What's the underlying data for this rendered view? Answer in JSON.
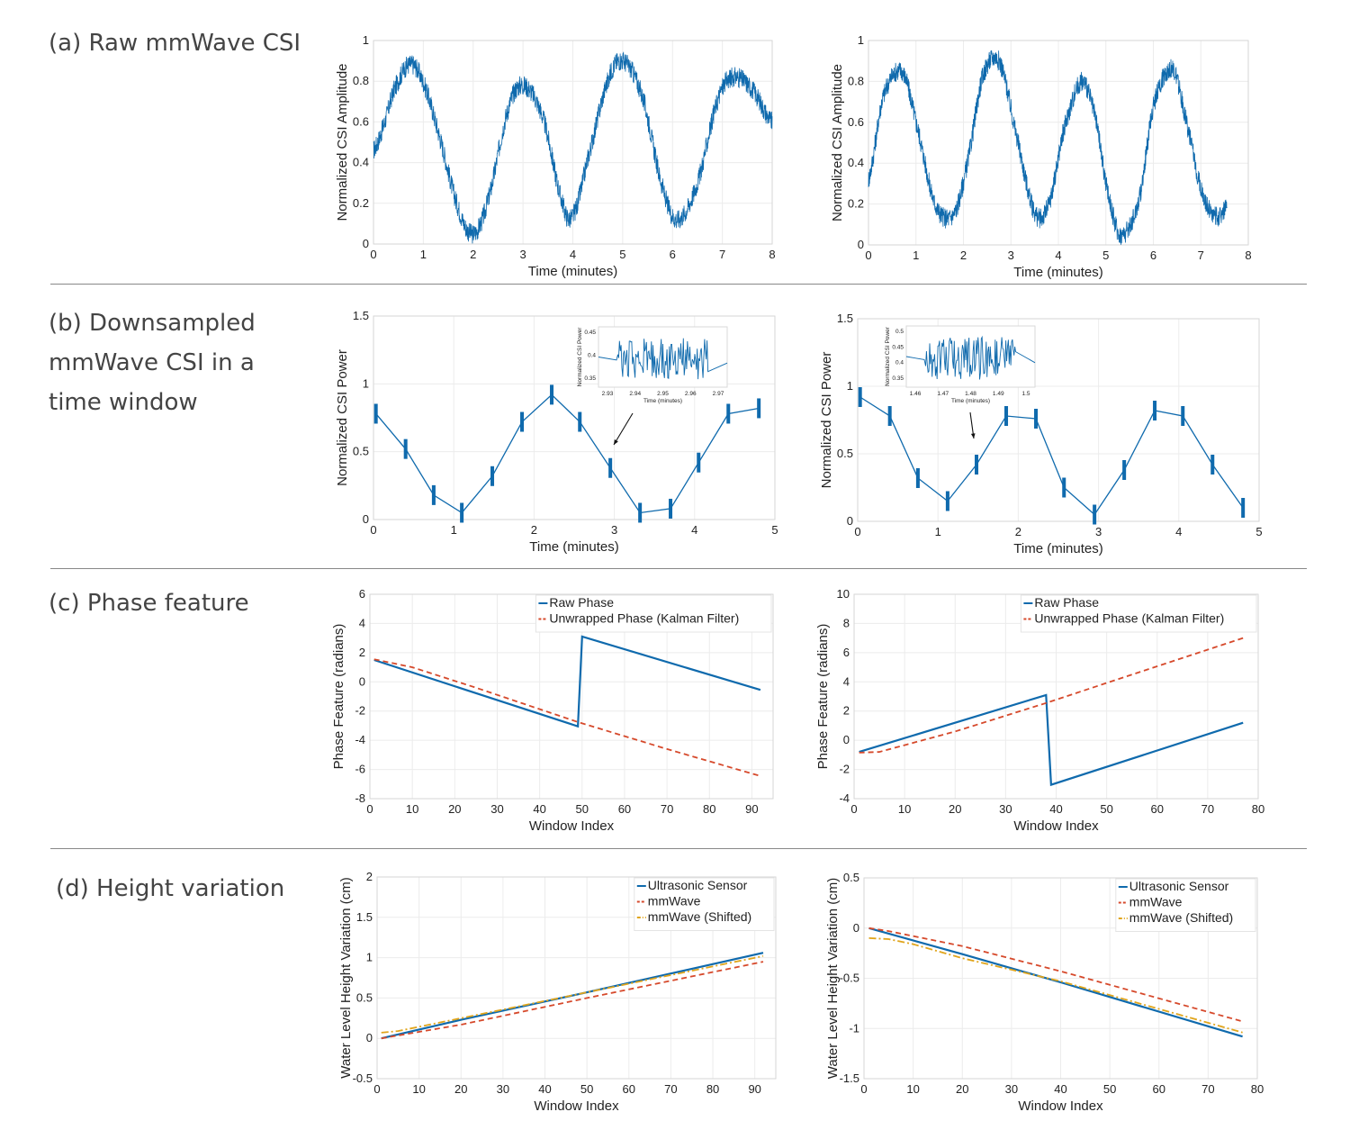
{
  "rows": [
    {
      "key": "a",
      "label": "(a) Raw mmWave CSI"
    },
    {
      "key": "b",
      "label": "(b) Downsampled\nmmWave CSI in a\ntime window"
    },
    {
      "key": "c",
      "label": "(c) Phase feature"
    },
    {
      "key": "d",
      "label": "(d) Height variation"
    }
  ],
  "colors": {
    "blue": "#0f6aad",
    "red": "#d6492b",
    "orange": "#e0a51c"
  },
  "chart_data": [
    {
      "id": "a-left",
      "type": "line",
      "xlabel": "Time (minutes)",
      "ylabel": "Normalized CSI Amplitude",
      "xlim": [
        0,
        8
      ],
      "ylim": [
        0,
        1
      ],
      "xticks": [
        "0",
        "1",
        "2",
        "3",
        "4",
        "5",
        "6",
        "7",
        "8"
      ],
      "yticks": [
        "0",
        "0.2",
        "0.4",
        "0.6",
        "0.8",
        "1"
      ],
      "series": [
        {
          "style": "noisy-band",
          "x": [
            0,
            0.2,
            0.4,
            0.7,
            0.95,
            1.3,
            1.7,
            2.0,
            2.3,
            2.7,
            3.0,
            3.4,
            3.8,
            4.0,
            4.3,
            4.7,
            5.0,
            5.4,
            5.8,
            6.1,
            6.5,
            6.9,
            7.2,
            7.6,
            8.0
          ],
          "y": [
            0.46,
            0.58,
            0.75,
            0.88,
            0.82,
            0.55,
            0.18,
            0.05,
            0.22,
            0.66,
            0.78,
            0.62,
            0.2,
            0.14,
            0.42,
            0.8,
            0.9,
            0.72,
            0.28,
            0.12,
            0.3,
            0.7,
            0.82,
            0.76,
            0.6
          ]
        }
      ]
    },
    {
      "id": "a-right",
      "type": "line",
      "xlabel": "Time (minutes)",
      "ylabel": "Normalized CSI Amplitude",
      "xlim": [
        0,
        8
      ],
      "ylim": [
        0,
        1
      ],
      "xticks": [
        "0",
        "1",
        "2",
        "3",
        "4",
        "5",
        "6",
        "7",
        "8"
      ],
      "yticks": [
        "0",
        "0.2",
        "0.4",
        "0.6",
        "0.8",
        "1"
      ],
      "series": [
        {
          "style": "noisy-band",
          "x": [
            0,
            0.3,
            0.7,
            1.0,
            1.4,
            1.8,
            2.1,
            2.4,
            2.75,
            3.1,
            3.5,
            3.8,
            4.1,
            4.5,
            4.8,
            5.0,
            5.3,
            5.7,
            6.0,
            6.4,
            6.7,
            7.0,
            7.3,
            7.55
          ],
          "y": [
            0.32,
            0.72,
            0.85,
            0.6,
            0.2,
            0.15,
            0.42,
            0.82,
            0.9,
            0.55,
            0.16,
            0.2,
            0.55,
            0.8,
            0.6,
            0.3,
            0.05,
            0.22,
            0.68,
            0.86,
            0.6,
            0.28,
            0.14,
            0.18
          ]
        }
      ]
    },
    {
      "id": "b-left",
      "type": "line",
      "xlabel": "Time (minutes)",
      "ylabel": "Normalized CSI Power",
      "xlim": [
        0,
        5
      ],
      "ylim": [
        0,
        1.5
      ],
      "xticks": [
        "0",
        "1",
        "2",
        "3",
        "4",
        "5"
      ],
      "yticks": [
        "0",
        "0.5",
        "1",
        "1.5"
      ],
      "series": [
        {
          "style": "line-with-bursts",
          "x": [
            0.03,
            0.4,
            0.75,
            1.1,
            1.48,
            1.85,
            2.22,
            2.57,
            2.95,
            3.32,
            3.7,
            4.05,
            4.42,
            4.8
          ],
          "y": [
            0.78,
            0.52,
            0.18,
            0.05,
            0.32,
            0.72,
            0.92,
            0.72,
            0.38,
            0.05,
            0.08,
            0.42,
            0.78,
            0.82
          ]
        }
      ],
      "inset": {
        "xlabel": "Time (minutes)",
        "ylabel": "Normalized CSI Power",
        "xticks": [
          "2.93",
          "2.94",
          "2.95",
          "2.96",
          "2.97"
        ],
        "yticks": [
          "0.35",
          "0.4",
          "0.45"
        ]
      }
    },
    {
      "id": "b-right",
      "type": "line",
      "xlabel": "Time (minutes)",
      "ylabel": "Normalized CSI Power",
      "xlim": [
        0,
        5
      ],
      "ylim": [
        0,
        1.5
      ],
      "xticks": [
        "0",
        "1",
        "2",
        "3",
        "4",
        "5"
      ],
      "yticks": [
        "0",
        "0.5",
        "1",
        "1.5"
      ],
      "series": [
        {
          "style": "line-with-bursts",
          "x": [
            0.03,
            0.4,
            0.75,
            1.12,
            1.48,
            1.85,
            2.22,
            2.57,
            2.95,
            3.32,
            3.7,
            4.05,
            4.42,
            4.8
          ],
          "y": [
            0.92,
            0.78,
            0.32,
            0.15,
            0.42,
            0.78,
            0.76,
            0.25,
            0.05,
            0.38,
            0.82,
            0.78,
            0.42,
            0.1
          ]
        }
      ],
      "inset": {
        "xlabel": "Time (minutes)",
        "ylabel": "Normalized CSI Power",
        "xticks": [
          "1.46",
          "1.47",
          "1.48",
          "1.49",
          "1.5"
        ],
        "yticks": [
          "0.35",
          "0.4",
          "0.45",
          "0.5"
        ]
      }
    },
    {
      "id": "c-left",
      "type": "line",
      "xlabel": "Window Index",
      "ylabel": "Phase Feature (radians)",
      "xlim": [
        0,
        95
      ],
      "ylim": [
        -8,
        6
      ],
      "xticks": [
        "0",
        "10",
        "20",
        "30",
        "40",
        "50",
        "60",
        "70",
        "80",
        "90"
      ],
      "yticks": [
        "-8",
        "-6",
        "-4",
        "-2",
        "0",
        "2",
        "4",
        "6"
      ],
      "legend": "top-right",
      "series": [
        {
          "name": "Raw Phase",
          "style": "solid",
          "x": [
            1,
            49,
            50,
            92
          ],
          "y": [
            1.5,
            -3.05,
            3.1,
            -0.55
          ]
        },
        {
          "name": "Unwrapped Phase (Kalman Filter)",
          "style": "dashed",
          "x": [
            1,
            10,
            25,
            49,
            70,
            92
          ],
          "y": [
            1.55,
            1.0,
            -0.4,
            -2.75,
            -4.6,
            -6.45
          ]
        }
      ]
    },
    {
      "id": "c-right",
      "type": "line",
      "xlabel": "Window Index",
      "ylabel": "Phase Feature (radians)",
      "xlim": [
        0,
        80
      ],
      "ylim": [
        -4,
        10
      ],
      "xticks": [
        "0",
        "10",
        "20",
        "30",
        "40",
        "50",
        "60",
        "70",
        "80"
      ],
      "yticks": [
        "-4",
        "-2",
        "0",
        "2",
        "4",
        "6",
        "8",
        "10"
      ],
      "legend": "top-right",
      "series": [
        {
          "name": "Raw Phase",
          "style": "solid",
          "x": [
            1,
            38,
            39,
            77
          ],
          "y": [
            -0.8,
            3.1,
            -3.05,
            1.2
          ]
        },
        {
          "name": "Unwrapped Phase (Kalman Filter)",
          "style": "dashed",
          "x": [
            1,
            5,
            20,
            38,
            55,
            77
          ],
          "y": [
            -0.85,
            -0.8,
            0.6,
            2.55,
            4.5,
            7.0
          ]
        }
      ]
    },
    {
      "id": "d-left",
      "type": "line",
      "xlabel": "Window Index",
      "ylabel": "Water Level Height Variation (cm)",
      "xlim": [
        0,
        95
      ],
      "ylim": [
        -0.5,
        2
      ],
      "xticks": [
        "0",
        "10",
        "20",
        "30",
        "40",
        "50",
        "60",
        "70",
        "80",
        "90"
      ],
      "yticks": [
        "-0.5",
        "0",
        "0.5",
        "1",
        "1.5",
        "2"
      ],
      "legend": "top-right",
      "series": [
        {
          "name": "Ultrasonic Sensor",
          "style": "solid",
          "x": [
            1,
            20,
            50,
            92
          ],
          "y": [
            0.0,
            0.23,
            0.57,
            1.06
          ]
        },
        {
          "name": "mmWave",
          "style": "dashed",
          "x": [
            1,
            20,
            50,
            92
          ],
          "y": [
            0.0,
            0.17,
            0.5,
            0.95
          ]
        },
        {
          "name": "mmWave (Shifted)",
          "style": "dashdot",
          "x": [
            1,
            5,
            20,
            50,
            92
          ],
          "y": [
            0.07,
            0.09,
            0.25,
            0.57,
            1.02
          ]
        }
      ]
    },
    {
      "id": "d-right",
      "type": "line",
      "xlabel": "Window Index",
      "ylabel": "Water Level Height Variation (cm)",
      "xlim": [
        0,
        80
      ],
      "ylim": [
        -1.5,
        0.5
      ],
      "xticks": [
        "0",
        "10",
        "20",
        "30",
        "40",
        "50",
        "60",
        "70",
        "80"
      ],
      "yticks": [
        "-1.5",
        "-1",
        "-0.5",
        "0",
        "0.5"
      ],
      "legend": "top-right",
      "series": [
        {
          "name": "Ultrasonic Sensor",
          "style": "solid",
          "x": [
            1,
            20,
            40,
            77
          ],
          "y": [
            0.0,
            -0.26,
            -0.54,
            -1.08
          ]
        },
        {
          "name": "mmWave",
          "style": "dashed",
          "x": [
            1,
            5,
            20,
            40,
            77
          ],
          "y": [
            0.0,
            -0.03,
            -0.18,
            -0.43,
            -0.93
          ]
        },
        {
          "name": "mmWave (Shifted)",
          "style": "dashdot",
          "x": [
            1,
            5,
            10,
            20,
            40,
            77
          ],
          "y": [
            -0.1,
            -0.11,
            -0.16,
            -0.3,
            -0.53,
            -1.04
          ]
        }
      ]
    }
  ]
}
